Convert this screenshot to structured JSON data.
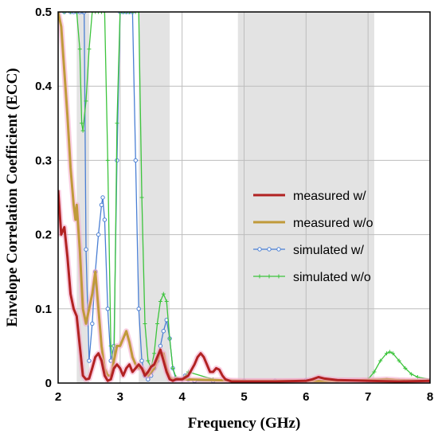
{
  "chart_data": {
    "type": "line",
    "xlabel": "Frequency (GHz)",
    "ylabel": "Envelope Correlation Coefficient (ECC)",
    "xlim": [
      2,
      8
    ],
    "ylim": [
      0,
      0.5
    ],
    "xticks": [
      "2",
      "3",
      "4",
      "5",
      "6",
      "7",
      "8"
    ],
    "yticks": [
      "0",
      "0.1",
      "0.2",
      "0.3",
      "0.4",
      "0.5"
    ],
    "grid": true,
    "legend_position": "right",
    "shaded_bands": [
      [
        2.3,
        2.5
      ],
      [
        3.3,
        3.8
      ],
      [
        4.9,
        7.1
      ]
    ],
    "shade_color": "#e3e3e3",
    "series": [
      {
        "name": "measured w/",
        "color": "#b22222",
        "marker": "none",
        "x": [
          2.0,
          2.05,
          2.1,
          2.15,
          2.2,
          2.25,
          2.3,
          2.35,
          2.4,
          2.45,
          2.5,
          2.55,
          2.6,
          2.65,
          2.7,
          2.75,
          2.8,
          2.85,
          2.9,
          2.95,
          3.0,
          3.05,
          3.1,
          3.15,
          3.2,
          3.25,
          3.3,
          3.35,
          3.4,
          3.45,
          3.5,
          3.55,
          3.6,
          3.65,
          3.7,
          3.75,
          3.8,
          3.85,
          3.9,
          4.0,
          4.1,
          4.2,
          4.25,
          4.3,
          4.35,
          4.4,
          4.45,
          4.5,
          4.55,
          4.6,
          4.65,
          4.7,
          4.8,
          5.0,
          5.5,
          6.0,
          6.1,
          6.2,
          6.3,
          6.5,
          7.0,
          7.5,
          8.0
        ],
        "y": [
          0.26,
          0.2,
          0.21,
          0.17,
          0.12,
          0.1,
          0.09,
          0.05,
          0.01,
          0.005,
          0.006,
          0.02,
          0.035,
          0.04,
          0.03,
          0.01,
          0.003,
          0.005,
          0.02,
          0.025,
          0.02,
          0.01,
          0.02,
          0.025,
          0.015,
          0.02,
          0.025,
          0.02,
          0.01,
          0.015,
          0.022,
          0.025,
          0.035,
          0.045,
          0.03,
          0.015,
          0.005,
          0.003,
          0.005,
          0.005,
          0.01,
          0.025,
          0.035,
          0.04,
          0.035,
          0.025,
          0.015,
          0.015,
          0.02,
          0.018,
          0.01,
          0.005,
          0.002,
          0.002,
          0.002,
          0.003,
          0.005,
          0.008,
          0.006,
          0.004,
          0.003,
          0.002,
          0.003
        ]
      },
      {
        "name": "measured w/o",
        "color": "#c09a3a",
        "marker": "none",
        "x": [
          2.0,
          2.05,
          2.1,
          2.15,
          2.2,
          2.25,
          2.28,
          2.3,
          2.35,
          2.4,
          2.45,
          2.5,
          2.55,
          2.6,
          2.65,
          2.7,
          2.75,
          2.8,
          2.85,
          2.9,
          2.95,
          3.0,
          3.05,
          3.1,
          3.15,
          3.2,
          3.25,
          3.3,
          3.35,
          3.4,
          3.45,
          3.5,
          3.55,
          3.6,
          3.65,
          3.7,
          3.75,
          3.8,
          3.85,
          3.9,
          4.0,
          4.5,
          5.0,
          5.5,
          6.0,
          6.5,
          7.0,
          7.3,
          7.5,
          8.0
        ],
        "y": [
          0.5,
          0.48,
          0.42,
          0.36,
          0.29,
          0.24,
          0.22,
          0.24,
          0.18,
          0.1,
          0.08,
          0.1,
          0.12,
          0.15,
          0.1,
          0.05,
          0.02,
          0.01,
          0.01,
          0.03,
          0.05,
          0.05,
          0.06,
          0.07,
          0.055,
          0.035,
          0.025,
          0.02,
          0.02,
          0.015,
          0.01,
          0.015,
          0.02,
          0.03,
          0.04,
          0.04,
          0.02,
          0.008,
          0.005,
          0.005,
          0.005,
          0.004,
          0.003,
          0.003,
          0.003,
          0.003,
          0.004,
          0.005,
          0.004,
          0.003
        ]
      },
      {
        "name": "simulated w/",
        "color": "#4a7fd4",
        "marker": "circle",
        "x": [
          2.0,
          2.1,
          2.2,
          2.25,
          2.3,
          2.35,
          2.4,
          2.42,
          2.45,
          2.5,
          2.55,
          2.6,
          2.65,
          2.7,
          2.72,
          2.75,
          2.8,
          2.85,
          2.9,
          2.95,
          3.0,
          3.05,
          3.1,
          3.15,
          3.2,
          3.25,
          3.3,
          3.35,
          3.4,
          3.45,
          3.5,
          3.55,
          3.6,
          3.65,
          3.7,
          3.75,
          3.8,
          3.85,
          3.9,
          4.0,
          4.05,
          4.1,
          4.2,
          4.5,
          5.0,
          5.5,
          6.0,
          6.5,
          7.0,
          7.3,
          7.5,
          8.0
        ],
        "y": [
          0.5,
          0.5,
          0.5,
          0.5,
          0.5,
          0.5,
          0.5,
          0.5,
          0.18,
          0.03,
          0.08,
          0.15,
          0.2,
          0.24,
          0.25,
          0.22,
          0.1,
          0.03,
          0.05,
          0.3,
          0.5,
          0.5,
          0.5,
          0.5,
          0.5,
          0.3,
          0.1,
          0.03,
          0.01,
          0.005,
          0.01,
          0.02,
          0.03,
          0.05,
          0.07,
          0.085,
          0.06,
          0.02,
          0.005,
          0.005,
          0.01,
          0.005,
          0.003,
          0.003,
          0.003,
          0.003,
          0.004,
          0.003,
          0.003,
          0.004,
          0.003,
          0.003
        ]
      },
      {
        "name": "simulated w/o",
        "color": "#3cc43c",
        "marker": "plus",
        "x": [
          2.0,
          2.1,
          2.2,
          2.3,
          2.35,
          2.38,
          2.4,
          2.45,
          2.5,
          2.55,
          2.6,
          2.65,
          2.7,
          2.75,
          2.8,
          2.85,
          2.9,
          2.95,
          3.0,
          3.05,
          3.1,
          3.15,
          3.2,
          3.25,
          3.3,
          3.35,
          3.4,
          3.45,
          3.5,
          3.55,
          3.6,
          3.65,
          3.7,
          3.75,
          3.8,
          3.85,
          3.9,
          4.0,
          4.1,
          4.5,
          5.0,
          6.0,
          6.5,
          7.0,
          7.1,
          7.2,
          7.3,
          7.35,
          7.4,
          7.5,
          7.6,
          7.7,
          7.8,
          8.0
        ],
        "y": [
          0.5,
          0.5,
          0.5,
          0.5,
          0.45,
          0.35,
          0.34,
          0.38,
          0.45,
          0.5,
          0.5,
          0.5,
          0.5,
          0.5,
          0.3,
          0.05,
          0.02,
          0.35,
          0.5,
          0.5,
          0.5,
          0.5,
          0.5,
          0.5,
          0.5,
          0.25,
          0.08,
          0.03,
          0.02,
          0.04,
          0.08,
          0.11,
          0.12,
          0.11,
          0.06,
          0.02,
          0.008,
          0.005,
          0.015,
          0.005,
          0.003,
          0.003,
          0.003,
          0.005,
          0.015,
          0.03,
          0.04,
          0.042,
          0.04,
          0.03,
          0.02,
          0.012,
          0.008,
          0.005
        ]
      }
    ]
  }
}
